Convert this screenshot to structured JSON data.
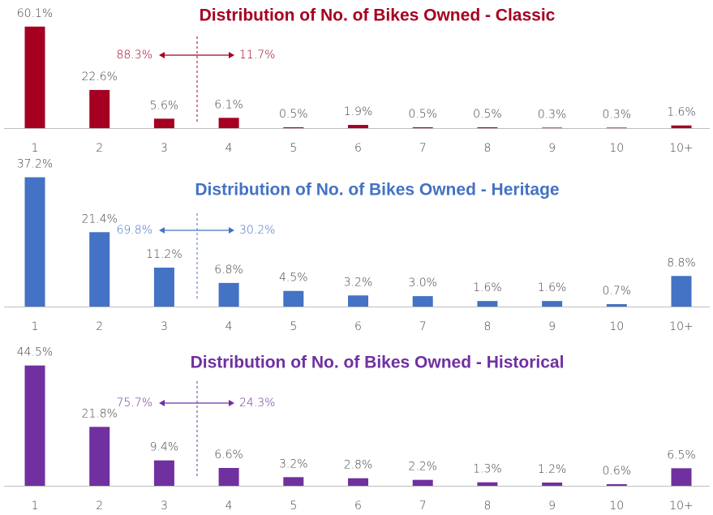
{
  "chart_data": [
    {
      "type": "bar",
      "title": "Distribution of No. of Bikes Owned - Classic",
      "color": "#a50021",
      "categories": [
        "1",
        "2",
        "3",
        "4",
        "5",
        "6",
        "7",
        "8",
        "9",
        "10",
        "10+"
      ],
      "values": [
        60.1,
        22.6,
        5.6,
        6.1,
        0.5,
        1.9,
        0.5,
        0.5,
        0.3,
        0.3,
        1.6
      ],
      "value_labels": [
        "60.1%",
        "22.6%",
        "5.6%",
        "6.1%",
        "0.5%",
        "1.9%",
        "0.5%",
        "0.5%",
        "0.3%",
        "0.3%",
        "1.6%"
      ],
      "ylim": [
        0,
        72
      ],
      "annotations": {
        "left": "88.3%",
        "right": "11.7%"
      }
    },
    {
      "type": "bar",
      "title": "Distribution of No. of Bikes Owned - Heritage",
      "color": "#4472c4",
      "categories": [
        "1",
        "2",
        "3",
        "4",
        "5",
        "6",
        "7",
        "8",
        "9",
        "10",
        "10+"
      ],
      "values": [
        37.2,
        21.4,
        11.2,
        6.8,
        4.5,
        3.2,
        3.0,
        1.6,
        1.6,
        0.7,
        8.8
      ],
      "value_labels": [
        "37.2%",
        "21.4%",
        "11.2%",
        "6.8%",
        "4.5%",
        "3.2%",
        "3.0%",
        "1.6%",
        "1.6%",
        "0.7%",
        "8.8%"
      ],
      "ylim": [
        0,
        35
      ],
      "annotations": {
        "left": "69.8%",
        "right": "30.2%"
      }
    },
    {
      "type": "bar",
      "title": "Distribution of No. of Bikes Owned - Historical",
      "color": "#7030a0",
      "categories": [
        "1",
        "2",
        "3",
        "4",
        "5",
        "6",
        "7",
        "8",
        "9",
        "10",
        "10+"
      ],
      "values": [
        44.5,
        21.8,
        9.4,
        6.6,
        3.2,
        2.8,
        2.2,
        1.3,
        1.2,
        0.6,
        6.5
      ],
      "value_labels": [
        "44.5%",
        "21.8%",
        "9.4%",
        "6.6%",
        "3.2%",
        "2.8%",
        "2.2%",
        "1.3%",
        "1.2%",
        "0.6%",
        "6.5%"
      ],
      "ylim": [
        0,
        45
      ],
      "annotations": {
        "left": "75.7%",
        "right": "24.3%"
      }
    }
  ]
}
